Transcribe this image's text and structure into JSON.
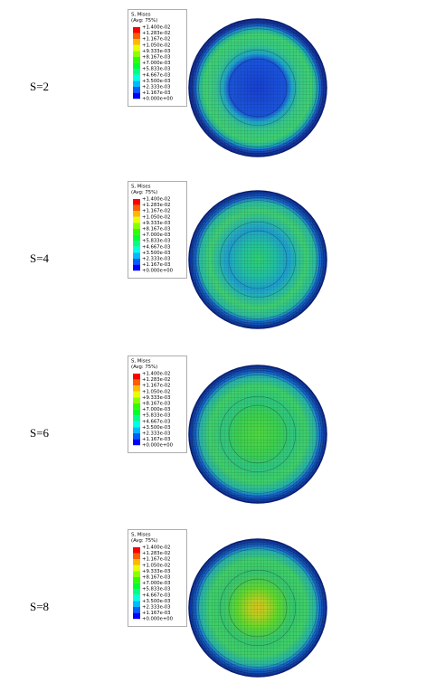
{
  "legend_colors": [
    "#ff0000",
    "#ff5e00",
    "#ffb900",
    "#e7ff00",
    "#8aff00",
    "#2eff00",
    "#00ff2e",
    "#00ff8a",
    "#00ffe7",
    "#00b9ff",
    "#005eff",
    "#0000ff"
  ],
  "panels": [
    {
      "label": "S=2",
      "legend": {
        "title": "S, Mises",
        "subtitle": "(Avg: 75%)",
        "values": [
          "+1.400e-02",
          "+1.283e-02",
          "+1.167e-02",
          "+1.050e-02",
          "+9.333e-03",
          "+8.167e-03",
          "+7.000e-03",
          "+5.833e-03",
          "+4.667e-03",
          "+3.500e-03",
          "+2.333e-03",
          "+1.167e-03",
          "+0.000e+00"
        ]
      }
    },
    {
      "label": "S=4",
      "legend": {
        "title": "S, Mises",
        "subtitle": "(Avg: 75%)",
        "values": [
          "+1.400e-02",
          "+1.283e-02",
          "+1.167e-02",
          "+1.050e-02",
          "+9.333e-03",
          "+8.167e-03",
          "+7.000e-03",
          "+5.833e-03",
          "+4.667e-03",
          "+3.500e-03",
          "+2.333e-03",
          "+1.167e-03",
          "+0.000e+00"
        ]
      }
    },
    {
      "label": "S=6",
      "legend": {
        "title": "S, Mises",
        "subtitle": "(Avg: 75%)",
        "values": [
          "+1.400e-02",
          "+1.283e-02",
          "+1.167e-02",
          "+1.050e-02",
          "+9.333e-03",
          "+8.167e-03",
          "+7.000e-03",
          "+5.833e-03",
          "+4.667e-03",
          "+3.500e-03",
          "+2.333e-03",
          "+1.167e-03",
          "+0.000e+00"
        ]
      }
    },
    {
      "label": "S=8",
      "legend": {
        "title": "S, Mises",
        "subtitle": "(Avg: 75%)",
        "values": [
          "+1.400e-02",
          "+1.283e-02",
          "+1.167e-02",
          "+1.050e-02",
          "+9.333e-03",
          "+8.167e-03",
          "+7.000e-03",
          "+5.833e-03",
          "+4.667e-03",
          "+3.500e-03",
          "+2.333e-03",
          "+1.167e-03",
          "+0.000e+00"
        ]
      }
    }
  ]
}
